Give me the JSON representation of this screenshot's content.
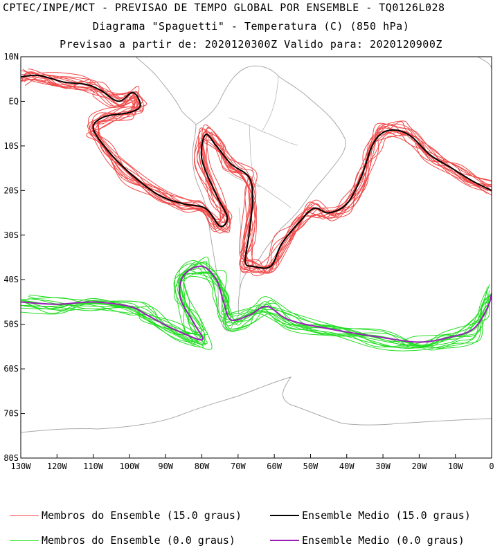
{
  "header": {
    "line1": "CPTEC/INPE/MCT - PREVISAO DE TEMPO GLOBAL POR ENSEMBLE - TQ0126L028",
    "line2": "Diagrama \"Spaguetti\" - Temperatura (C) (850 hPa)",
    "line3": "Previsao a partir de: 2020120300Z  Valido para: 2020120900Z"
  },
  "axes": {
    "lat_labels": [
      "10N",
      "EQ",
      "10S",
      "20S",
      "30S",
      "40S",
      "50S",
      "60S",
      "70S",
      "80S"
    ],
    "lat_values": [
      10,
      0,
      -10,
      -20,
      -30,
      -40,
      -50,
      -60,
      -70,
      -80
    ],
    "lon_labels": [
      "130W",
      "120W",
      "110W",
      "100W",
      "90W",
      "80W",
      "70W",
      "60W",
      "50W",
      "40W",
      "30W",
      "20W",
      "10W",
      "0"
    ],
    "lon_values": [
      -130,
      -120,
      -110,
      -100,
      -90,
      -80,
      -70,
      -60,
      -50,
      -40,
      -30,
      -20,
      -10,
      0
    ],
    "lon_range": [
      -130,
      0
    ],
    "lat_range": [
      -80,
      10
    ]
  },
  "colors": {
    "member_15": "#f04848",
    "mean_15": "#000000",
    "member_0": "#22dd22",
    "mean_0": "#9a1fb8",
    "land": "#a8a8a8"
  },
  "legend": {
    "members_15": "Membros do Ensemble (15.0 graus)",
    "mean_15": "Ensemble Medio (15.0 graus)",
    "members_0": "Membros do Ensemble (0.0 graus)",
    "mean_0": "Ensemble Medio (0.0 graus)"
  },
  "contour_data": {
    "isotherm_15_mean": [
      [
        -130,
        5.5
      ],
      [
        -125,
        5.8
      ],
      [
        -118,
        4.3
      ],
      [
        -112,
        3.8
      ],
      [
        -108,
        2.5
      ],
      [
        -103,
        0
      ],
      [
        -99,
        2.0
      ],
      [
        -97,
        -1
      ],
      [
        -100,
        -2.5
      ],
      [
        -107,
        -3.5
      ],
      [
        -110,
        -6
      ],
      [
        -106,
        -11
      ],
      [
        -100,
        -16
      ],
      [
        -92,
        -21
      ],
      [
        -85,
        -23
      ],
      [
        -79,
        -24
      ],
      [
        -75,
        -28
      ],
      [
        -73,
        -26
      ],
      [
        -76,
        -21
      ],
      [
        -80,
        -13
      ],
      [
        -79,
        -7.5
      ],
      [
        -76,
        -10
      ],
      [
        -72,
        -14
      ],
      [
        -67,
        -17
      ],
      [
        -66,
        -22
      ],
      [
        -67,
        -30
      ],
      [
        -68,
        -36
      ],
      [
        -66,
        -37
      ],
      [
        -61,
        -37
      ],
      [
        -58,
        -32
      ],
      [
        -53,
        -27
      ],
      [
        -49,
        -24
      ],
      [
        -45,
        -25
      ],
      [
        -40,
        -23
      ],
      [
        -36,
        -17
      ],
      [
        -33,
        -10
      ],
      [
        -30,
        -7
      ],
      [
        -26,
        -6.5
      ],
      [
        -22,
        -8
      ],
      [
        -17,
        -12
      ],
      [
        -11,
        -15
      ],
      [
        -5,
        -18
      ],
      [
        0,
        -20
      ]
    ],
    "isotherm_0_mean": [
      [
        -130,
        -45
      ],
      [
        -120,
        -45.5
      ],
      [
        -110,
        -45
      ],
      [
        -100,
        -46
      ],
      [
        -95,
        -48
      ],
      [
        -88,
        -51
      ],
      [
        -80,
        -53.5
      ],
      [
        -82,
        -50
      ],
      [
        -86,
        -44
      ],
      [
        -85,
        -39
      ],
      [
        -80,
        -37
      ],
      [
        -76,
        -40
      ],
      [
        -74,
        -45
      ],
      [
        -72,
        -49
      ],
      [
        -67,
        -48
      ],
      [
        -62,
        -46
      ],
      [
        -56,
        -49
      ],
      [
        -45,
        -51
      ],
      [
        -30,
        -53
      ],
      [
        -20,
        -54
      ],
      [
        -12,
        -53
      ],
      [
        -5,
        -51
      ],
      [
        -1,
        -46
      ],
      [
        0,
        -43
      ]
    ]
  }
}
